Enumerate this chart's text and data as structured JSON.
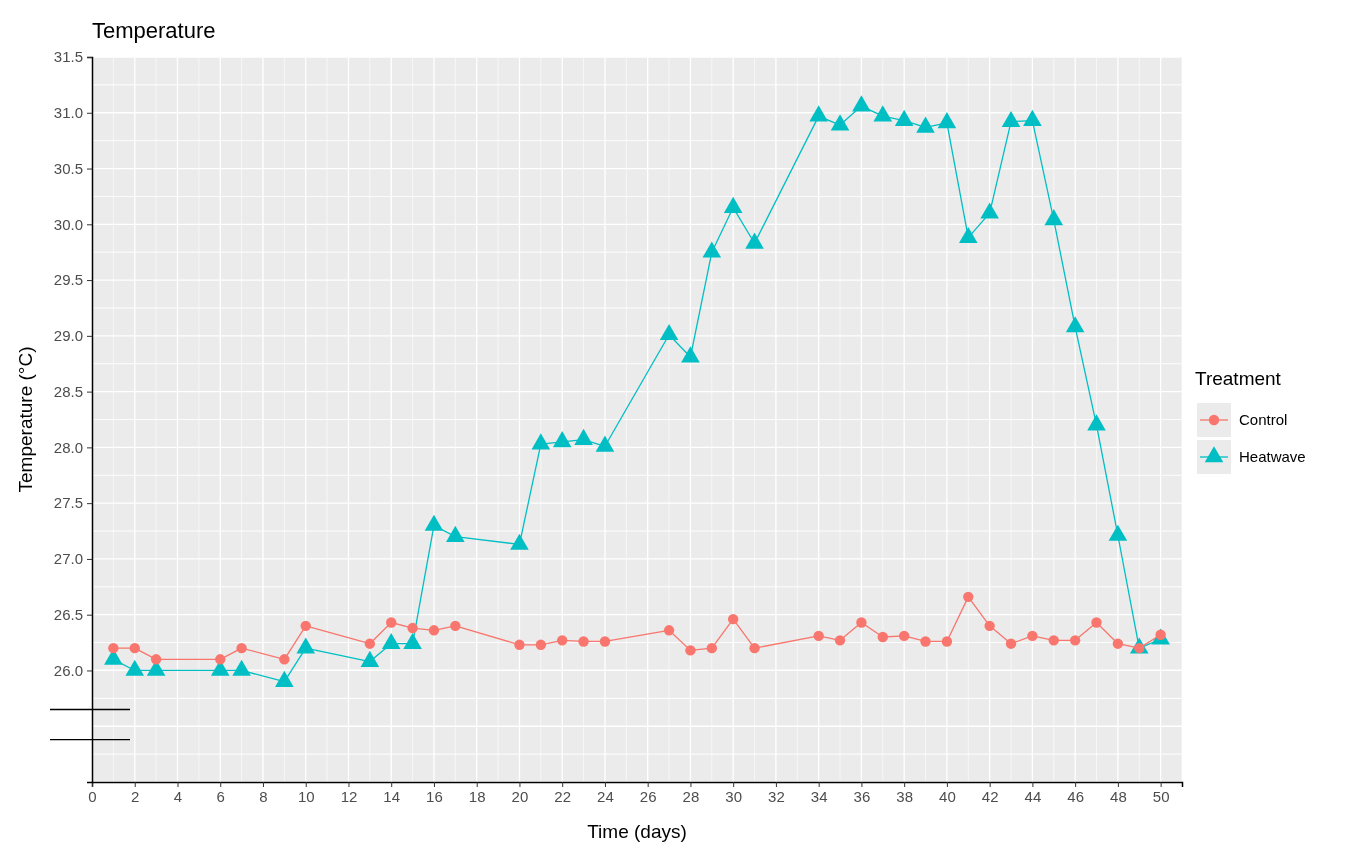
{
  "chart_data": {
    "type": "line",
    "title": "Temperature",
    "xlabel": "Time (days)",
    "ylabel": "Temperature (°C)",
    "legend_title": "Treatment",
    "legend": "right",
    "grid": true,
    "line_style": "solid",
    "xlim": [
      0,
      51
    ],
    "xticks": [
      0,
      2,
      4,
      6,
      8,
      10,
      12,
      14,
      16,
      18,
      20,
      22,
      24,
      26,
      28,
      30,
      32,
      34,
      36,
      38,
      40,
      42,
      44,
      46,
      48,
      50
    ],
    "ylim": [
      25.0,
      31.5
    ],
    "yticks": [
      {
        "value": 26,
        "label": "26.0"
      },
      {
        "value": 26.5,
        "label": "26.5"
      },
      {
        "value": 27,
        "label": "27.0"
      },
      {
        "value": 27.5,
        "label": "27.5"
      },
      {
        "value": 28,
        "label": "28.0"
      },
      {
        "value": 28.5,
        "label": "28.5"
      },
      {
        "value": 29,
        "label": "29.0"
      },
      {
        "value": 29.5,
        "label": "29.5"
      },
      {
        "value": 30,
        "label": "30.0"
      },
      {
        "value": 30.5,
        "label": "30.5"
      },
      {
        "value": 31,
        "label": "31.0"
      },
      {
        "value": 31.5,
        "label": "31.5"
      }
    ],
    "x": [
      1,
      2,
      3,
      6,
      7,
      9,
      10,
      13,
      14,
      15,
      16,
      17,
      20,
      21,
      22,
      23,
      24,
      27,
      28,
      29,
      30,
      31,
      34,
      35,
      36,
      37,
      38,
      39,
      40,
      41,
      42,
      43,
      44,
      45,
      46,
      47,
      48,
      49,
      50
    ],
    "series": [
      {
        "name": "Control",
        "color": "#f8766d",
        "marker": "circle",
        "values": [
          26.2,
          26.2,
          26.1,
          26.1,
          26.2,
          26.1,
          26.4,
          26.24,
          26.43,
          26.38,
          26.36,
          26.4,
          26.23,
          26.23,
          26.27,
          26.26,
          26.26,
          26.36,
          26.18,
          26.2,
          26.46,
          26.2,
          26.31,
          26.27,
          26.43,
          26.3,
          26.31,
          26.26,
          26.26,
          26.66,
          26.4,
          26.24,
          26.31,
          26.27,
          26.27,
          26.43,
          26.24,
          26.2,
          26.32
        ]
      },
      {
        "name": "Heatwave",
        "color": "#00bfc4",
        "marker": "triangle",
        "values": [
          26.1,
          26.0,
          26.0,
          26.0,
          26.0,
          25.9,
          26.2,
          26.08,
          26.24,
          26.24,
          27.3,
          27.2,
          27.13,
          28.03,
          28.05,
          28.07,
          28.01,
          29.01,
          28.81,
          29.75,
          30.15,
          29.83,
          30.97,
          30.89,
          31.06,
          30.97,
          30.93,
          30.87,
          30.91,
          29.88,
          30.1,
          30.92,
          30.93,
          30.04,
          29.08,
          28.2,
          27.21,
          26.2,
          26.28
        ]
      }
    ]
  }
}
